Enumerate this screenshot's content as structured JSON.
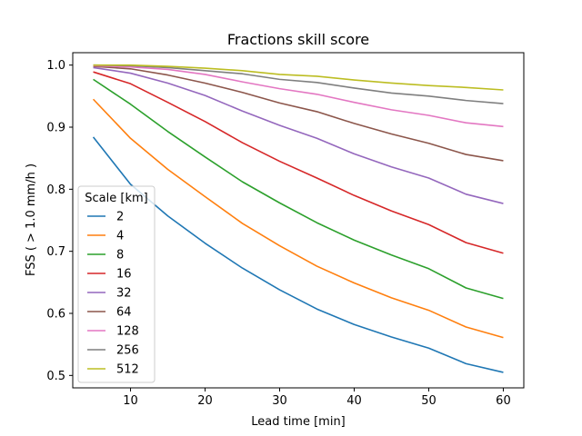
{
  "chart_data": {
    "type": "line",
    "title": "Fractions skill score",
    "xlabel": "Lead time [min]",
    "ylabel": "FSS ( > 1.0 mm/h )",
    "xlim": [
      2.25,
      62.75
    ],
    "ylim": [
      0.48,
      1.02
    ],
    "x_ticks": [
      10,
      20,
      30,
      40,
      50,
      60
    ],
    "y_ticks": [
      0.5,
      0.6,
      0.7,
      0.8,
      0.9,
      1.0
    ],
    "x_tick_labels": [
      "10",
      "20",
      "30",
      "40",
      "50",
      "60"
    ],
    "y_tick_labels": [
      "0.5",
      "0.6",
      "0.7",
      "0.8",
      "0.9",
      "1.0"
    ],
    "legend": {
      "title": "Scale [km]",
      "placement": "lower-left"
    },
    "x": [
      5,
      10,
      15,
      20,
      25,
      30,
      35,
      40,
      45,
      50,
      55,
      60
    ],
    "series": [
      {
        "name": "2",
        "color": "#1f77b4",
        "values": [
          0.884,
          0.808,
          0.757,
          0.713,
          0.673,
          0.638,
          0.607,
          0.582,
          0.562,
          0.544,
          0.519,
          0.505
        ]
      },
      {
        "name": "4",
        "color": "#ff7f0e",
        "values": [
          0.945,
          0.882,
          0.832,
          0.788,
          0.745,
          0.709,
          0.676,
          0.649,
          0.625,
          0.605,
          0.578,
          0.561
        ]
      },
      {
        "name": "8",
        "color": "#2ca02c",
        "values": [
          0.977,
          0.937,
          0.893,
          0.852,
          0.812,
          0.778,
          0.746,
          0.718,
          0.694,
          0.672,
          0.641,
          0.624
        ]
      },
      {
        "name": "16",
        "color": "#d62728",
        "values": [
          0.989,
          0.97,
          0.94,
          0.909,
          0.875,
          0.845,
          0.818,
          0.79,
          0.765,
          0.743,
          0.714,
          0.697
        ]
      },
      {
        "name": "32",
        "color": "#9467bd",
        "values": [
          0.996,
          0.987,
          0.971,
          0.951,
          0.926,
          0.903,
          0.882,
          0.857,
          0.836,
          0.818,
          0.792,
          0.777
        ]
      },
      {
        "name": "64",
        "color": "#8c564b",
        "values": [
          0.998,
          0.994,
          0.984,
          0.971,
          0.956,
          0.939,
          0.925,
          0.906,
          0.889,
          0.874,
          0.856,
          0.846
        ]
      },
      {
        "name": "128",
        "color": "#e377c2",
        "values": [
          0.999,
          0.997,
          0.993,
          0.985,
          0.973,
          0.962,
          0.953,
          0.94,
          0.928,
          0.919,
          0.907,
          0.901
        ]
      },
      {
        "name": "256",
        "color": "#7f7f7f",
        "values": [
          1.0,
          0.999,
          0.996,
          0.991,
          0.986,
          0.977,
          0.972,
          0.963,
          0.955,
          0.95,
          0.943,
          0.938
        ]
      },
      {
        "name": "512",
        "color": "#bcbd22",
        "values": [
          1.0,
          1.0,
          0.998,
          0.995,
          0.991,
          0.985,
          0.982,
          0.976,
          0.971,
          0.967,
          0.964,
          0.96
        ]
      }
    ]
  }
}
